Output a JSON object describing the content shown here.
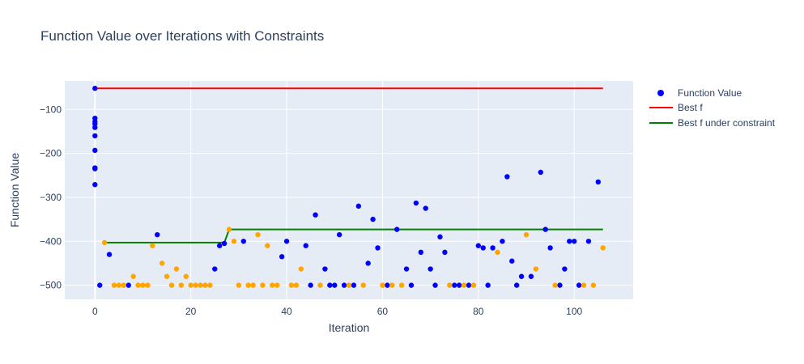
{
  "chart_data": {
    "type": "scatter",
    "title": "Function Value over Iterations with Constraints",
    "xlabel": "Iteration",
    "ylabel": "Function Value",
    "xlim": [
      -6.3,
      112.3
    ],
    "ylim": [
      -532,
      -35
    ],
    "xticks": [
      0,
      20,
      40,
      60,
      80,
      100
    ],
    "yticks": [
      -100,
      -200,
      -300,
      -400,
      -500
    ],
    "ytick_labels": [
      "−100",
      "−200",
      "−300",
      "−400",
      "−500"
    ],
    "grid": true,
    "legend_position": "top-right",
    "colors": {
      "plot_bg": "#e5ecf6",
      "grid": "#ffffff",
      "function_value": "#0000ff",
      "infeasible": "#ffa500",
      "best_f": "#ff0000",
      "best_f_constraint": "#008000"
    },
    "series": [
      {
        "name": "Function Value",
        "mode": "markers",
        "color": "#0000ff",
        "points": [
          [
            0,
            -52
          ],
          [
            0,
            -120
          ],
          [
            0,
            -128
          ],
          [
            0,
            -133
          ],
          [
            0,
            -141
          ],
          [
            0,
            -160
          ],
          [
            0,
            -193
          ],
          [
            0,
            -233
          ],
          [
            0,
            -235
          ],
          [
            0,
            -271
          ],
          [
            1,
            -500
          ],
          [
            3,
            -430
          ],
          [
            7,
            -500
          ],
          [
            13,
            -385
          ],
          [
            25,
            -463
          ],
          [
            26,
            -410
          ],
          [
            27,
            -405
          ],
          [
            31,
            -400
          ],
          [
            39,
            -435
          ],
          [
            40,
            -400
          ],
          [
            44,
            -410
          ],
          [
            45,
            -500
          ],
          [
            46,
            -340
          ],
          [
            48,
            -463
          ],
          [
            49,
            -500
          ],
          [
            50,
            -500
          ],
          [
            51,
            -385
          ],
          [
            52,
            -500
          ],
          [
            54,
            -500
          ],
          [
            55,
            -320
          ],
          [
            57,
            -450
          ],
          [
            58,
            -350
          ],
          [
            59,
            -415
          ],
          [
            61,
            -500
          ],
          [
            63,
            -373
          ],
          [
            65,
            -463
          ],
          [
            66,
            -500
          ],
          [
            67,
            -313
          ],
          [
            68,
            -425
          ],
          [
            69,
            -325
          ],
          [
            70,
            -463
          ],
          [
            71,
            -500
          ],
          [
            72,
            -390
          ],
          [
            73,
            -425
          ],
          [
            75,
            -500
          ],
          [
            76,
            -500
          ],
          [
            78,
            -500
          ],
          [
            80,
            -410
          ],
          [
            81,
            -415
          ],
          [
            82,
            -500
          ],
          [
            83,
            -415
          ],
          [
            85,
            -400
          ],
          [
            86,
            -253
          ],
          [
            87,
            -445
          ],
          [
            88,
            -500
          ],
          [
            89,
            -480
          ],
          [
            91,
            -480
          ],
          [
            93,
            -243
          ],
          [
            94,
            -373
          ],
          [
            95,
            -415
          ],
          [
            97,
            -500
          ],
          [
            98,
            -463
          ],
          [
            99,
            -400
          ],
          [
            100,
            -400
          ],
          [
            101,
            -500
          ],
          [
            103,
            -400
          ],
          [
            105,
            -265
          ]
        ]
      },
      {
        "name": "",
        "mode": "markers",
        "color": "#ffa500",
        "points": [
          [
            2,
            -403
          ],
          [
            4,
            -500
          ],
          [
            5,
            -500
          ],
          [
            6,
            -500
          ],
          [
            8,
            -480
          ],
          [
            9,
            -500
          ],
          [
            10,
            -500
          ],
          [
            11,
            -500
          ],
          [
            12,
            -410
          ],
          [
            14,
            -450
          ],
          [
            15,
            -480
          ],
          [
            16,
            -500
          ],
          [
            17,
            -463
          ],
          [
            18,
            -500
          ],
          [
            19,
            -480
          ],
          [
            20,
            -500
          ],
          [
            21,
            -500
          ],
          [
            22,
            -500
          ],
          [
            23,
            -500
          ],
          [
            24,
            -500
          ],
          [
            28,
            -373
          ],
          [
            29,
            -400
          ],
          [
            30,
            -500
          ],
          [
            32,
            -500
          ],
          [
            33,
            -500
          ],
          [
            34,
            -385
          ],
          [
            35,
            -500
          ],
          [
            36,
            -410
          ],
          [
            37,
            -500
          ],
          [
            38,
            -500
          ],
          [
            41,
            -500
          ],
          [
            42,
            -500
          ],
          [
            43,
            -463
          ],
          [
            47,
            -500
          ],
          [
            53,
            -500
          ],
          [
            56,
            -500
          ],
          [
            60,
            -500
          ],
          [
            62,
            -500
          ],
          [
            64,
            -500
          ],
          [
            74,
            -500
          ],
          [
            77,
            -500
          ],
          [
            79,
            -500
          ],
          [
            84,
            -425
          ],
          [
            90,
            -385
          ],
          [
            92,
            -463
          ],
          [
            96,
            -500
          ],
          [
            102,
            -500
          ],
          [
            104,
            -500
          ],
          [
            106,
            -415
          ]
        ]
      },
      {
        "name": "Best f",
        "mode": "line",
        "color": "#ff0000",
        "points": [
          [
            0,
            -52
          ],
          [
            106,
            -52
          ]
        ]
      },
      {
        "name": "Best f under constraint",
        "mode": "line",
        "color": "#008000",
        "points": [
          [
            2,
            -403
          ],
          [
            27,
            -403
          ],
          [
            28,
            -373
          ],
          [
            106,
            -373
          ]
        ]
      }
    ]
  }
}
